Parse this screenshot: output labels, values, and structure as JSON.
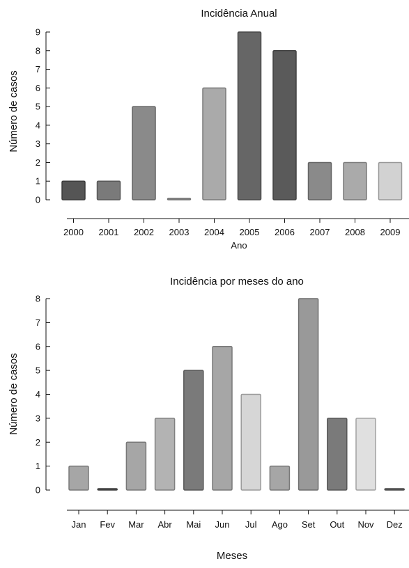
{
  "chart_data": [
    {
      "type": "bar",
      "title": "Incidência Anual",
      "xlabel": "Ano",
      "ylabel": "Número de casos",
      "ylim": [
        0,
        9
      ],
      "yticks": [
        "0",
        "1",
        "2",
        "3",
        "4",
        "5",
        "6",
        "7",
        "8",
        "9"
      ],
      "categories": [
        "2000",
        "2001",
        "2002",
        "2003",
        "2004",
        "2005",
        "2006",
        "2007",
        "2008",
        "2009"
      ],
      "values": [
        1,
        1,
        5,
        0,
        6,
        9,
        8,
        2,
        2,
        2
      ],
      "colors": [
        "#555555",
        "#7a7a7a",
        "#8a8a8a",
        "#999999",
        "#aaaaaa",
        "#666666",
        "#5a5a5a",
        "#8a8a8a",
        "#aaaaaa",
        "#d2d2d2"
      ],
      "grid": false
    },
    {
      "type": "bar",
      "title": "Incidência por meses do ano",
      "xlabel": "Meses",
      "ylabel": "Número de casos",
      "ylim": [
        0,
        8
      ],
      "yticks": [
        "0",
        "1",
        "2",
        "3",
        "4",
        "5",
        "6",
        "7",
        "8"
      ],
      "categories": [
        "Jan",
        "Fev",
        "Mar",
        "Abr",
        "Mai",
        "Jun",
        "Jul",
        "Ago",
        "Set",
        "Out",
        "Nov",
        "Dez"
      ],
      "values": [
        1,
        0,
        2,
        3,
        5,
        6,
        4,
        1,
        8,
        3,
        3,
        0
      ],
      "colors": [
        "#a6a6a6",
        "#555555",
        "#a6a6a6",
        "#b3b3b3",
        "#7a7a7a",
        "#a6a6a6",
        "#d6d6d6",
        "#a6a6a6",
        "#999999",
        "#7a7a7a",
        "#e0e0e0",
        "#666666"
      ],
      "grid": false
    }
  ]
}
